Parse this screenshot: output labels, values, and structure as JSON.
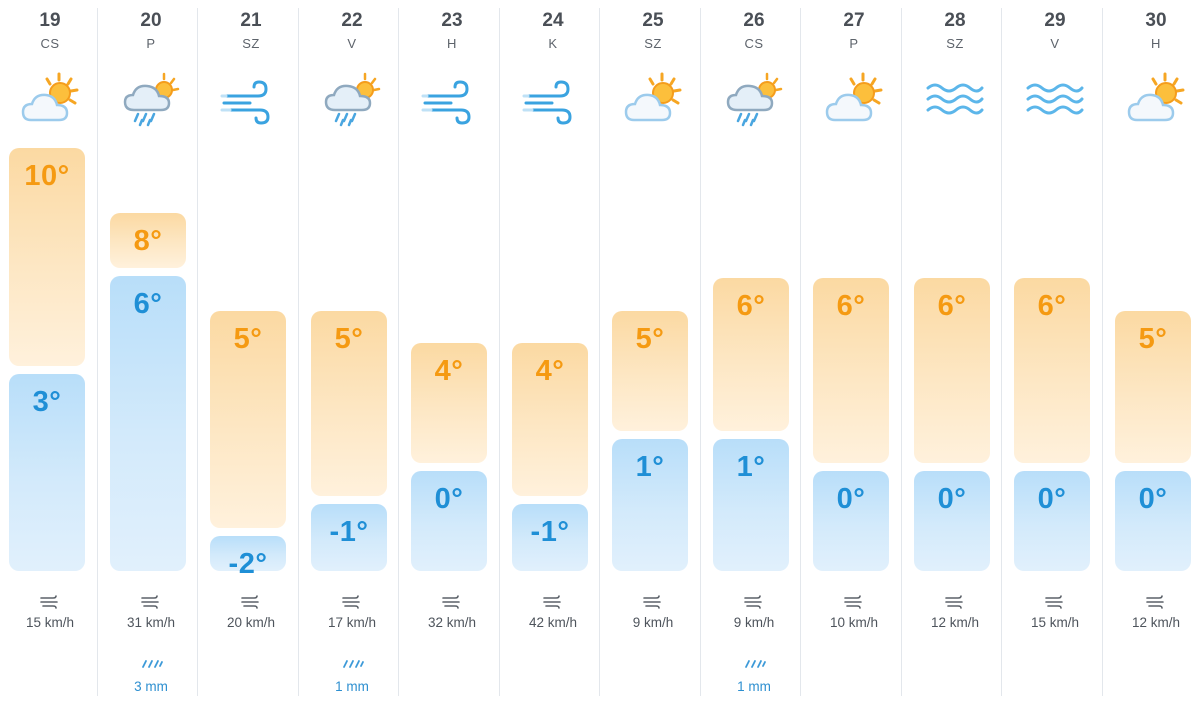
{
  "units": {
    "wind": "km/h",
    "precipitation": "mm"
  },
  "colors": {
    "max_text": "#f59a12",
    "min_text": "#1f8fd6",
    "max_bar": "#fde7c4",
    "min_bar": "#d3eafb",
    "rain_text": "#2d8fd0"
  },
  "scale": {
    "top_temp": 10,
    "bottom_temp": -3
  },
  "days": [
    {
      "date": "19",
      "dow": "CS",
      "icon": "partly-cloudy-icon",
      "max": "10°",
      "max_value": 10,
      "min": "3°",
      "min_value": 3,
      "wind": "15 km/h",
      "rain": ""
    },
    {
      "date": "20",
      "dow": "P",
      "icon": "rain-icon",
      "max": "8°",
      "max_value": 8,
      "min": "6°",
      "min_value": 6,
      "wind": "31 km/h",
      "rain": "3 mm"
    },
    {
      "date": "21",
      "dow": "SZ",
      "icon": "wind-icon",
      "max": "5°",
      "max_value": 5,
      "min": "-2°",
      "min_value": -2,
      "wind": "20 km/h",
      "rain": ""
    },
    {
      "date": "22",
      "dow": "V",
      "icon": "rain-icon",
      "max": "5°",
      "max_value": 5,
      "min": "-1°",
      "min_value": -1,
      "wind": "17 km/h",
      "rain": "1 mm"
    },
    {
      "date": "23",
      "dow": "H",
      "icon": "wind-icon",
      "max": "4°",
      "max_value": 4,
      "min": "0°",
      "min_value": 0,
      "wind": "32 km/h",
      "rain": ""
    },
    {
      "date": "24",
      "dow": "K",
      "icon": "wind-icon",
      "max": "4°",
      "max_value": 4,
      "min": "-1°",
      "min_value": -1,
      "wind": "42 km/h",
      "rain": ""
    },
    {
      "date": "25",
      "dow": "SZ",
      "icon": "partly-cloudy-icon",
      "max": "5°",
      "max_value": 5,
      "min": "1°",
      "min_value": 1,
      "wind": "9 km/h",
      "rain": ""
    },
    {
      "date": "26",
      "dow": "CS",
      "icon": "rain-icon",
      "max": "6°",
      "max_value": 6,
      "min": "1°",
      "min_value": 1,
      "wind": "9 km/h",
      "rain": "1 mm"
    },
    {
      "date": "27",
      "dow": "P",
      "icon": "partly-cloudy-icon",
      "max": "6°",
      "max_value": 6,
      "min": "0°",
      "min_value": 0,
      "wind": "10 km/h",
      "rain": ""
    },
    {
      "date": "28",
      "dow": "SZ",
      "icon": "fog-icon",
      "max": "6°",
      "max_value": 6,
      "min": "0°",
      "min_value": 0,
      "wind": "12 km/h",
      "rain": ""
    },
    {
      "date": "29",
      "dow": "V",
      "icon": "fog-icon",
      "max": "6°",
      "max_value": 6,
      "min": "0°",
      "min_value": 0,
      "wind": "15 km/h",
      "rain": ""
    },
    {
      "date": "30",
      "dow": "H",
      "icon": "partly-cloudy-icon",
      "max": "5°",
      "max_value": 5,
      "min": "0°",
      "min_value": 0,
      "wind": "12 km/h",
      "rain": ""
    }
  ]
}
